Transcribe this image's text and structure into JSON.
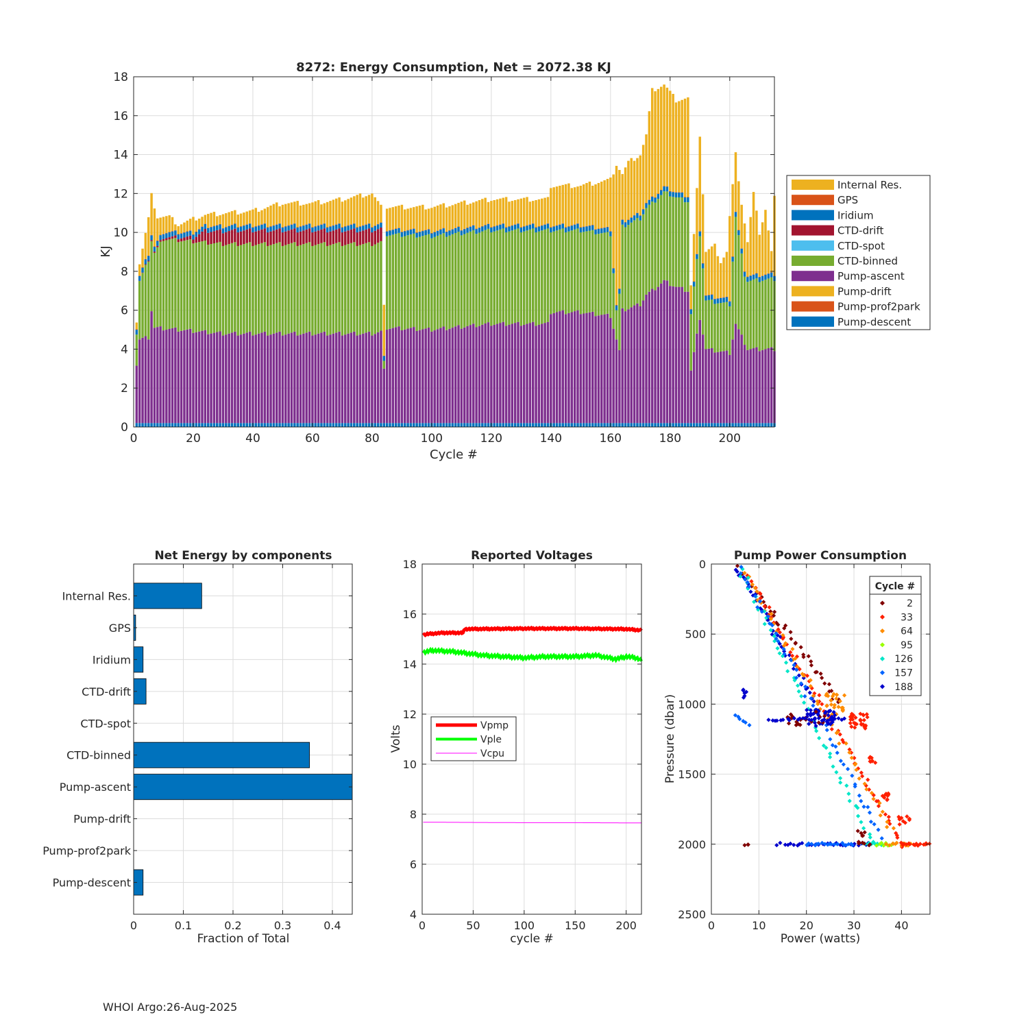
{
  "footer": "WHOI Argo:26-Aug-2025",
  "colors": {
    "internal_res": "#EDB120",
    "gps": "#D95319",
    "iridium": "#0072BD",
    "ctd_drift": "#A2142F",
    "ctd_spot": "#4DBEEE",
    "ctd_binned": "#77AC30",
    "pump_ascent": "#7E2F8E",
    "pump_drift": "#EDB120",
    "pump_prof2park": "#D95319",
    "pump_descent": "#0072BD",
    "vpmp": "#FF0000",
    "vple": "#00FF00",
    "vcpu": "#FF00FF"
  },
  "chart_data": [
    {
      "id": "energy",
      "type": "bar",
      "stacked": true,
      "title": "8272: Energy Consumption,  Net = 2072.38 KJ",
      "xlabel": "Cycle #",
      "ylabel": "KJ",
      "xlim": [
        0,
        215
      ],
      "ylim": [
        0,
        18
      ],
      "xticks": [
        0,
        20,
        40,
        60,
        80,
        100,
        120,
        140,
        160,
        180,
        200
      ],
      "yticks": [
        0,
        2,
        4,
        6,
        8,
        10,
        12,
        14,
        16,
        18
      ],
      "grid": true,
      "legend_position": "outside-right",
      "legend": [
        "Internal Res.",
        "GPS",
        "Iridium",
        "CTD-drift",
        "CTD-spot",
        "CTD-binned",
        "Pump-ascent",
        "Pump-drift",
        "Pump-prof2park",
        "Pump-descent"
      ],
      "cycles_1_to_215": "one bar per cycle",
      "total_kj_key": [
        [
          1,
          5.45
        ],
        [
          2,
          8.4
        ],
        [
          5,
          10.7
        ],
        [
          6,
          11.9
        ],
        [
          8,
          10.8
        ],
        [
          12,
          10.8
        ],
        [
          15,
          10.4
        ],
        [
          24,
          10.9
        ],
        [
          40,
          11.1
        ],
        [
          50,
          11.5
        ],
        [
          60,
          11.5
        ],
        [
          70,
          11.7
        ],
        [
          80,
          12.0
        ],
        [
          83,
          11.3
        ],
        [
          84,
          6.4
        ],
        [
          85,
          11.3
        ],
        [
          100,
          11.3
        ],
        [
          120,
          11.7
        ],
        [
          139,
          11.7
        ],
        [
          140,
          12.4
        ],
        [
          150,
          12.4
        ],
        [
          160,
          12.7
        ],
        [
          162,
          13.5
        ],
        [
          164,
          13.0
        ],
        [
          166,
          13.6
        ],
        [
          170,
          14.0
        ],
        [
          172,
          15.0
        ],
        [
          174,
          17.3
        ],
        [
          178,
          17.6
        ],
        [
          182,
          16.8
        ],
        [
          186,
          16.9
        ],
        [
          187,
          7.2
        ],
        [
          190,
          15.0
        ],
        [
          192,
          9.0
        ],
        [
          195,
          9.3
        ],
        [
          197,
          8.5
        ],
        [
          199,
          9.0
        ],
        [
          200,
          10.8
        ],
        [
          202,
          14.0
        ],
        [
          204,
          11.5
        ],
        [
          206,
          9.5
        ],
        [
          208,
          12.0
        ],
        [
          210,
          10.0
        ],
        [
          212,
          11.2
        ],
        [
          214,
          9.0
        ],
        [
          215,
          11.8
        ]
      ],
      "ctd_drift_kj_key": [
        [
          1,
          0
        ],
        [
          20,
          0.2
        ],
        [
          24,
          0.6
        ],
        [
          35,
          0.7
        ],
        [
          83,
          0.7
        ],
        [
          84,
          0
        ],
        [
          215,
          0
        ]
      ],
      "ctd_binned_kj_key": [
        [
          1,
          1.6
        ],
        [
          2,
          3.0
        ],
        [
          5,
          4.0
        ],
        [
          6,
          3.6
        ],
        [
          10,
          4.6
        ],
        [
          24,
          4.6
        ],
        [
          83,
          4.6
        ],
        [
          84,
          0.4
        ],
        [
          85,
          4.8
        ],
        [
          139,
          4.8
        ],
        [
          140,
          4.2
        ],
        [
          160,
          4.2
        ],
        [
          162,
          1.5
        ],
        [
          164,
          4.3
        ],
        [
          180,
          4.6
        ],
        [
          186,
          4.6
        ],
        [
          187,
          2.9
        ],
        [
          190,
          4.3
        ],
        [
          192,
          2.5
        ],
        [
          200,
          2.5
        ],
        [
          202,
          5.5
        ],
        [
          205,
          3.5
        ],
        [
          215,
          3.6
        ]
      ],
      "pump_ascent_kj_key": [
        [
          1,
          3.2
        ],
        [
          2,
          4.5
        ],
        [
          5,
          4.6
        ],
        [
          6,
          6.0
        ],
        [
          7,
          5.1
        ],
        [
          15,
          5.0
        ],
        [
          30,
          4.8
        ],
        [
          80,
          4.8
        ],
        [
          83,
          4.9
        ],
        [
          84,
          2.9
        ],
        [
          85,
          5.1
        ],
        [
          100,
          5.0
        ],
        [
          120,
          5.3
        ],
        [
          139,
          5.3
        ],
        [
          140,
          5.9
        ],
        [
          150,
          5.9
        ],
        [
          160,
          5.7
        ],
        [
          163,
          3.9
        ],
        [
          164,
          6.0
        ],
        [
          170,
          6.3
        ],
        [
          172,
          6.8
        ],
        [
          174,
          7.0
        ],
        [
          178,
          7.5
        ],
        [
          182,
          7.2
        ],
        [
          186,
          7.0
        ],
        [
          187,
          2.9
        ],
        [
          190,
          5.6
        ],
        [
          192,
          4.0
        ],
        [
          200,
          3.8
        ],
        [
          202,
          5.3
        ],
        [
          206,
          4.0
        ],
        [
          215,
          4.0
        ]
      ],
      "pump_descent_kj": 0.2,
      "iridium_kj": 0.25,
      "gps_kj": 0.02
    },
    {
      "id": "components",
      "type": "bar",
      "orientation": "horizontal",
      "title": "Net Energy by components",
      "xlabel": "Fraction of Total",
      "ylabel": "",
      "xlim": [
        0,
        0.44
      ],
      "xticks": [
        0,
        0.1,
        0.2,
        0.3,
        0.4
      ],
      "xtick_labels": [
        "0",
        "0.1",
        "0.2",
        "0.3",
        "0.4"
      ],
      "grid": true,
      "categories": [
        "Internal Res.",
        "GPS",
        "Iridium",
        "CTD-drift",
        "CTD-spot",
        "CTD-binned",
        "Pump-ascent",
        "Pump-drift",
        "Pump-prof2park",
        "Pump-descent"
      ],
      "values": [
        0.137,
        0.004,
        0.019,
        0.025,
        0.0,
        0.354,
        0.44,
        0.0,
        0.0,
        0.019
      ]
    },
    {
      "id": "voltages",
      "type": "line",
      "title": "Reported Voltages",
      "xlabel": "cycle #",
      "ylabel": "Volts",
      "xlim": [
        0,
        215
      ],
      "ylim": [
        4,
        18
      ],
      "xticks": [
        0,
        50,
        100,
        150,
        200
      ],
      "yticks": [
        4,
        6,
        8,
        10,
        12,
        14,
        16,
        18
      ],
      "grid": true,
      "legend_position": "middle-left",
      "series": [
        {
          "name": "Vpmp",
          "key": [
            [
              0,
              15.15
            ],
            [
              5,
              15.2
            ],
            [
              20,
              15.25
            ],
            [
              40,
              15.25
            ],
            [
              42,
              15.4
            ],
            [
              100,
              15.42
            ],
            [
              150,
              15.42
            ],
            [
              200,
              15.4
            ],
            [
              215,
              15.35
            ]
          ],
          "width": 5
        },
        {
          "name": "Vple",
          "key": [
            [
              0,
              14.45
            ],
            [
              10,
              14.55
            ],
            [
              30,
              14.5
            ],
            [
              60,
              14.35
            ],
            [
              100,
              14.25
            ],
            [
              120,
              14.3
            ],
            [
              150,
              14.3
            ],
            [
              170,
              14.35
            ],
            [
              190,
              14.2
            ],
            [
              200,
              14.3
            ],
            [
              210,
              14.25
            ],
            [
              215,
              14.15
            ]
          ],
          "width": 4
        },
        {
          "name": "Vcpu",
          "key": [
            [
              0,
              7.68
            ],
            [
              50,
              7.67
            ],
            [
              100,
              7.66
            ],
            [
              150,
              7.66
            ],
            [
              215,
              7.65
            ]
          ],
          "width": 1
        }
      ]
    },
    {
      "id": "pump_power",
      "type": "scatter",
      "title": "Pump Power Consumption",
      "xlabel": "Power (watts)",
      "ylabel": "Pressure (dbar)",
      "xlim": [
        0,
        46
      ],
      "ylim": [
        0,
        2500
      ],
      "y_reversed": true,
      "xticks": [
        0,
        10,
        20,
        30,
        40
      ],
      "yticks": [
        0,
        500,
        1000,
        1500,
        2000,
        2500
      ],
      "grid": true,
      "legend_title": "Cycle #",
      "legend_position": "top-right",
      "legend": [
        {
          "label": "2",
          "color": "#800000"
        },
        {
          "label": "33",
          "color": "#FF2000"
        },
        {
          "label": "64",
          "color": "#FF8C00"
        },
        {
          "label": "95",
          "color": "#9AFF00"
        },
        {
          "label": "126",
          "color": "#00E6C8"
        },
        {
          "label": "157",
          "color": "#0064FF"
        },
        {
          "label": "188",
          "color": "#0000CC"
        }
      ],
      "clusters": [
        {
          "color": "#800000",
          "type": "line",
          "from": [
            6,
            30
          ],
          "to": [
            27,
            1000
          ],
          "n": 40
        },
        {
          "color": "#0000CC",
          "type": "line",
          "from": [
            5,
            0
          ],
          "to": [
            22,
            1000
          ],
          "n": 40
        },
        {
          "color": "#FF2000",
          "type": "line",
          "from": [
            8,
            100
          ],
          "to": [
            40,
            2000
          ],
          "n": 60
        },
        {
          "color": "#FF8C00",
          "type": "line",
          "from": [
            7,
            60
          ],
          "to": [
            38,
            1900
          ],
          "n": 50
        },
        {
          "color": "#00E6C8",
          "type": "line",
          "from": [
            6,
            30
          ],
          "to": [
            34,
            2000
          ],
          "n": 50
        },
        {
          "color": "#0064FF",
          "type": "line",
          "from": [
            6,
            20
          ],
          "to": [
            36,
            1950
          ],
          "n": 50
        },
        {
          "color": "#FF2000",
          "type": "blob",
          "center": [
            31,
            1120
          ],
          "spread": [
            2,
            60
          ],
          "n": 30
        },
        {
          "color": "#FF8C00",
          "type": "blob",
          "center": [
            26,
            1000
          ],
          "spread": [
            2,
            80
          ],
          "n": 25
        },
        {
          "color": "#0000CC",
          "type": "blob",
          "center": [
            23,
            1100
          ],
          "spread": [
            3,
            60
          ],
          "n": 40
        },
        {
          "color": "#800000",
          "type": "blob",
          "center": [
            20,
            1100
          ],
          "spread": [
            4,
            50
          ],
          "n": 20
        },
        {
          "color": "#0000CC",
          "type": "row",
          "from": [
            12,
            1110
          ],
          "to": [
            28,
            1110
          ],
          "n": 25
        },
        {
          "color": "#0064FF",
          "type": "row",
          "from": [
            5,
            1080
          ],
          "to": [
            8,
            1150
          ],
          "n": 6
        },
        {
          "color": "#0000CC",
          "type": "row",
          "from": [
            14,
            2000
          ],
          "to": [
            33,
            2000
          ],
          "n": 30
        },
        {
          "color": "#0064FF",
          "type": "row",
          "from": [
            20,
            2000
          ],
          "to": [
            30,
            2000
          ],
          "n": 20
        },
        {
          "color": "#00E6C8",
          "type": "row",
          "from": [
            32,
            2000
          ],
          "to": [
            36,
            2000
          ],
          "n": 10
        },
        {
          "color": "#9AFF00",
          "type": "row",
          "from": [
            35,
            2000
          ],
          "to": [
            38,
            2000
          ],
          "n": 8
        },
        {
          "color": "#FF8C00",
          "type": "row",
          "from": [
            37,
            2000
          ],
          "to": [
            42,
            2000
          ],
          "n": 12
        },
        {
          "color": "#FF2000",
          "type": "row",
          "from": [
            40,
            2000
          ],
          "to": [
            46,
            2000
          ],
          "n": 16
        },
        {
          "color": "#800000",
          "type": "row",
          "from": [
            7,
            2000
          ],
          "to": [
            8,
            2010
          ],
          "n": 3
        },
        {
          "color": "#800000",
          "type": "blob",
          "center": [
            32,
            1950
          ],
          "spread": [
            1.5,
            60
          ],
          "n": 12
        },
        {
          "color": "#0000CC",
          "type": "blob",
          "center": [
            7,
            920
          ],
          "spread": [
            0.5,
            40
          ],
          "n": 6
        },
        {
          "color": "#FF2000",
          "type": "blob",
          "center": [
            37,
            1650
          ],
          "spread": [
            1,
            40
          ],
          "n": 10
        },
        {
          "color": "#FF2000",
          "type": "blob",
          "center": [
            40.5,
            1830
          ],
          "spread": [
            1.5,
            30
          ],
          "n": 10
        },
        {
          "color": "#FF2000",
          "type": "blob",
          "center": [
            34,
            1400
          ],
          "spread": [
            0.8,
            30
          ],
          "n": 8
        }
      ]
    }
  ]
}
